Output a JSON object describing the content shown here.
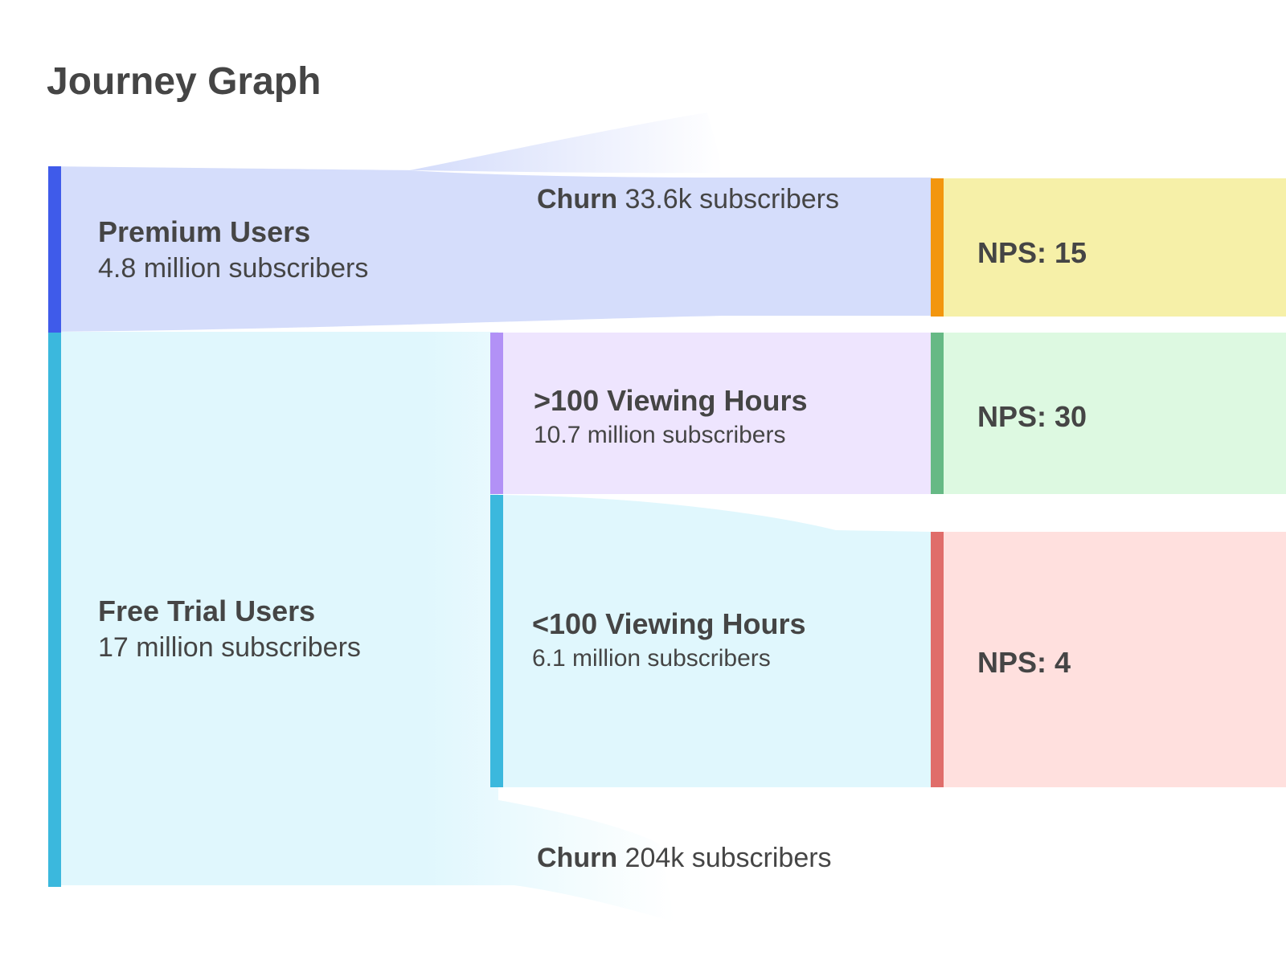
{
  "title": "Journey Graph",
  "colors": {
    "premium": "#3f5bea",
    "premium_flow": "#d5ddfb",
    "free": "#3bb8dd",
    "free_flow": "#e0f7fd",
    "high_view": "#b291f6",
    "high_view_flow": "#eee5fe",
    "nps_15": "#f3960e",
    "nps_15_fill": "#f6f0a8",
    "nps_30": "#66b985",
    "nps_30_fill": "#ddf9e1",
    "nps_4": "#e06d6a",
    "nps_4_fill": "#ffe0de"
  },
  "nodes": {
    "premium": {
      "name": "Premium Users",
      "count": "4.8 million subscribers"
    },
    "free": {
      "name": "Free Trial Users",
      "count": "17 million subscribers"
    },
    "high_view": {
      "name": ">100 Viewing Hours",
      "count": "10.7 million subscribers"
    },
    "low_view": {
      "name": "<100 Viewing Hours",
      "count": "6.1 million subscribers"
    },
    "churn_top": {
      "name": "Churn",
      "count": "33.6k subscribers"
    },
    "churn_bottom": {
      "name": "Churn",
      "count": "204k subscribers"
    },
    "nps_15": {
      "label": "NPS: 15"
    },
    "nps_30": {
      "label": "NPS: 30"
    },
    "nps_4": {
      "label": "NPS: 4"
    }
  }
}
